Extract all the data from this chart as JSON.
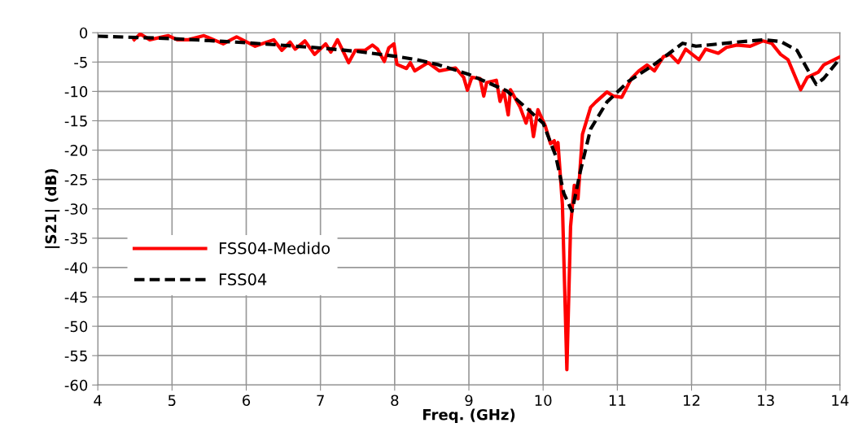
{
  "chart_data": {
    "type": "line",
    "xlabel": "Freq. (GHz)",
    "ylabel": "|S21| (dB)",
    "xlim": [
      4,
      14
    ],
    "xticks": [
      4,
      5,
      6,
      7,
      8,
      9,
      10,
      11,
      12,
      13,
      14
    ],
    "ylim": [
      -60,
      0
    ],
    "yticks": [
      -60,
      -55,
      -50,
      -45,
      -40,
      -35,
      -30,
      -25,
      -20,
      -15,
      -10,
      -5,
      0
    ],
    "grid": true,
    "legend": "center left",
    "series": [
      {
        "name": "FSS04-Medido",
        "color": "#ff0000",
        "line_style": "solid",
        "x": [
          4.49,
          4.57,
          4.7,
          4.95,
          5.07,
          5.22,
          5.43,
          5.69,
          5.87,
          6.12,
          6.37,
          6.48,
          6.59,
          6.66,
          6.79,
          6.92,
          7.07,
          7.14,
          7.23,
          7.38,
          7.47,
          7.6,
          7.7,
          7.77,
          7.86,
          7.92,
          7.99,
          8.03,
          8.16,
          8.21,
          8.27,
          8.45,
          8.6,
          8.82,
          8.93,
          8.98,
          9.04,
          9.15,
          9.2,
          9.24,
          9.37,
          9.42,
          9.47,
          9.53,
          9.56,
          9.69,
          9.77,
          9.82,
          9.87,
          9.93,
          10.03,
          10.1,
          10.15,
          10.17,
          10.2,
          10.26,
          10.32,
          10.37,
          10.42,
          10.47,
          10.53,
          10.64,
          10.71,
          10.86,
          10.95,
          11.06,
          11.19,
          11.29,
          11.4,
          11.5,
          11.62,
          11.71,
          11.82,
          11.92,
          12.1,
          12.19,
          12.36,
          12.47,
          12.61,
          12.79,
          12.96,
          13.08,
          13.2,
          13.3,
          13.47,
          13.56,
          13.71,
          13.78,
          13.89,
          14
        ],
        "values": [
          -1.2,
          -0.2,
          -1.2,
          -0.5,
          -1.2,
          -1.2,
          -0.5,
          -1.9,
          -0.7,
          -2.3,
          -1.2,
          -3.0,
          -1.6,
          -2.8,
          -1.4,
          -3.7,
          -1.9,
          -3.3,
          -1.2,
          -5.1,
          -3.0,
          -3.0,
          -2.1,
          -2.8,
          -4.9,
          -2.6,
          -1.9,
          -5.4,
          -6.1,
          -5.1,
          -6.5,
          -5.1,
          -6.5,
          -6.0,
          -7.6,
          -9.8,
          -7.6,
          -7.8,
          -10.8,
          -8.5,
          -8.1,
          -11.7,
          -9.9,
          -14,
          -9.7,
          -12.7,
          -15.4,
          -13.1,
          -17.7,
          -13.1,
          -15.9,
          -18.9,
          -18.4,
          -20,
          -18.7,
          -29.3,
          -57.4,
          -33,
          -26,
          -28.3,
          -17.3,
          -12.7,
          -11.8,
          -10.1,
          -10.8,
          -11,
          -7.8,
          -6.5,
          -5.5,
          -6.5,
          -4.1,
          -3.7,
          -5.1,
          -2.8,
          -4.6,
          -2.8,
          -3.5,
          -2.5,
          -2.1,
          -2.3,
          -1.4,
          -1.8,
          -3.7,
          -4.6,
          -9.7,
          -7.6,
          -6.7,
          -5.5,
          -4.8,
          -4.1
        ]
      },
      {
        "name": "FSS04",
        "color": "#000000",
        "line_style": "dashed",
        "x": [
          4,
          5,
          6,
          7,
          7.5,
          8,
          8.3,
          8.6,
          9,
          9.51,
          9.8,
          10,
          10.17,
          10.28,
          10.39,
          10.5,
          10.64,
          10.86,
          11.15,
          11.51,
          11.88,
          12.06,
          12.61,
          12.97,
          13.2,
          13.42,
          13.6,
          13.68,
          13.78,
          14
        ],
        "values": [
          -0.6,
          -1.0,
          -1.7,
          -2.6,
          -3.2,
          -4.0,
          -4.6,
          -5.5,
          -7.1,
          -9.9,
          -13.1,
          -15.4,
          -21,
          -27.4,
          -30.4,
          -23.7,
          -16.4,
          -11.8,
          -8.3,
          -5.3,
          -1.8,
          -2.3,
          -1.6,
          -1.2,
          -1.5,
          -3,
          -7.1,
          -8.8,
          -7.8,
          -4.4
        ]
      }
    ]
  }
}
